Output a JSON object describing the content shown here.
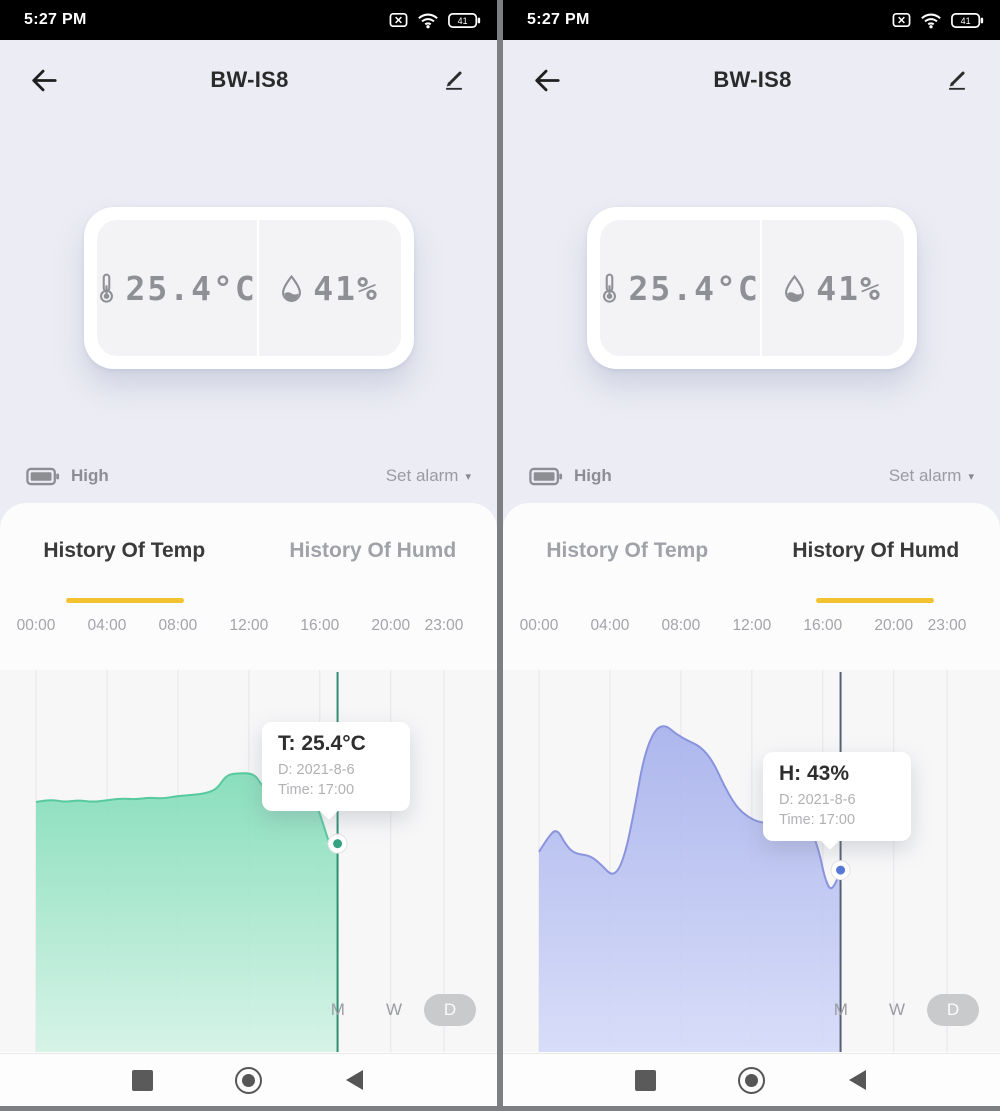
{
  "status_bar": {
    "time": "5:27 PM",
    "battery_level": "41"
  },
  "header": {
    "title": "BW-IS8"
  },
  "device": {
    "temperature": "25.4°C",
    "humidity": "41%"
  },
  "battery_row": {
    "label": "High",
    "set_alarm": "Set alarm"
  },
  "tabs": {
    "temp": "History Of Temp",
    "humd": "History Of Humd"
  },
  "range_buttons": {
    "month": "M",
    "week": "W",
    "day": "D",
    "active": "D"
  },
  "screens": [
    {
      "name": "temperature-history",
      "tooltip": {
        "title": "T: 25.4°C",
        "date": "D: 2021-8-6",
        "time": "Time: 17:00"
      }
    },
    {
      "name": "humidity-history",
      "tooltip": {
        "title": "H: 43%",
        "date": "D: 2021-8-6",
        "time": "Time: 17:00"
      }
    }
  ],
  "chart_data": [
    {
      "type": "area",
      "name": "temperature-history",
      "title": "History Of Temp",
      "series": "Temperature (°C), day view",
      "x_ticks": [
        "00:00",
        "04:00",
        "08:00",
        "12:00",
        "16:00",
        "20:00",
        "23:00"
      ],
      "x_tick_hours": [
        0,
        4,
        8,
        12,
        16,
        20,
        23
      ],
      "ylim": [
        23.0,
        27.4
      ],
      "points": [
        [
          0,
          25.88
        ],
        [
          0.8,
          25.91
        ],
        [
          1.6,
          25.88
        ],
        [
          2.4,
          25.9
        ],
        [
          3.2,
          25.88
        ],
        [
          4.0,
          25.9
        ],
        [
          4.8,
          25.92
        ],
        [
          5.6,
          25.91
        ],
        [
          6.4,
          25.93
        ],
        [
          7.2,
          25.92
        ],
        [
          8.0,
          25.95
        ],
        [
          8.8,
          25.96
        ],
        [
          9.6,
          25.98
        ],
        [
          10.2,
          26.03
        ],
        [
          10.7,
          26.18
        ],
        [
          11.2,
          26.21
        ],
        [
          12.3,
          26.21
        ],
        [
          12.7,
          26.08
        ],
        [
          13.1,
          25.99
        ],
        [
          14.6,
          25.98
        ],
        [
          15.3,
          25.94
        ],
        [
          15.8,
          25.86
        ],
        [
          16.2,
          25.62
        ],
        [
          16.5,
          25.42
        ],
        [
          16.8,
          25.33
        ],
        [
          17,
          25.4
        ]
      ],
      "marker": {
        "hour": 17,
        "value": 25.4,
        "date": "2021-8-6",
        "time": "17:00"
      },
      "colors": {
        "line": "#58c99e",
        "fill_top": "#7edcb7",
        "fill_bottom": "#d3f3e6",
        "indicator": "#2f8e71",
        "marker": "#35a383",
        "grid": "#e6e6e8"
      }
    },
    {
      "type": "area",
      "name": "humidity-history",
      "title": "History Of Humd",
      "series": "Humidity (%), day view",
      "x_ticks": [
        "00:00",
        "04:00",
        "08:00",
        "12:00",
        "16:00",
        "20:00",
        "23:00"
      ],
      "x_tick_hours": [
        0,
        4,
        8,
        12,
        16,
        20,
        23
      ],
      "ylim": [
        38.0,
        48.5
      ],
      "points": [
        [
          0,
          43.5
        ],
        [
          0.5,
          43.9
        ],
        [
          1.0,
          44.15
        ],
        [
          1.5,
          43.7
        ],
        [
          2.0,
          43.45
        ],
        [
          2.9,
          43.4
        ],
        [
          3.5,
          43.15
        ],
        [
          4.2,
          42.8
        ],
        [
          4.8,
          43.3
        ],
        [
          5.4,
          44.7
        ],
        [
          5.9,
          46.1
        ],
        [
          6.5,
          46.85
        ],
        [
          7.1,
          47.0
        ],
        [
          7.7,
          46.75
        ],
        [
          8.4,
          46.55
        ],
        [
          9.1,
          46.4
        ],
        [
          9.8,
          46.0
        ],
        [
          10.4,
          45.35
        ],
        [
          11.1,
          44.75
        ],
        [
          11.8,
          44.45
        ],
        [
          12.5,
          44.3
        ],
        [
          13.6,
          44.25
        ],
        [
          15.3,
          44.2
        ],
        [
          15.8,
          43.5
        ],
        [
          16.1,
          42.8
        ],
        [
          16.4,
          42.45
        ],
        [
          16.7,
          42.6
        ],
        [
          17,
          43.0
        ]
      ],
      "marker": {
        "hour": 17,
        "value": 43,
        "date": "2021-8-6",
        "time": "17:00"
      },
      "colors": {
        "line": "#8a94de",
        "fill_top": "#a6b0ec",
        "fill_bottom": "#d4daf8",
        "indicator": "#566074",
        "marker": "#567ad6",
        "grid": "#e6e6e8"
      }
    }
  ]
}
